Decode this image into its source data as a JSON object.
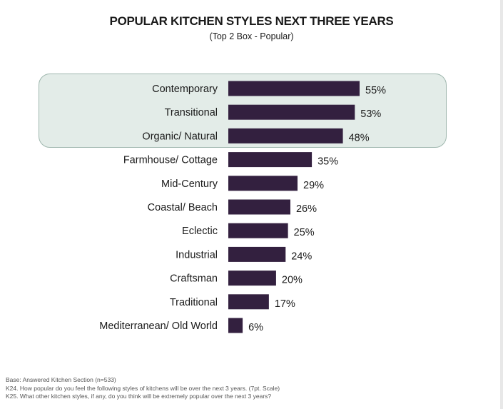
{
  "chart_data": {
    "type": "bar",
    "orientation": "horizontal",
    "title": "POPULAR KITCHEN STYLES NEXT THREE YEARS",
    "subtitle": "(Top 2 Box - Popular)",
    "categories": [
      "Contemporary",
      "Transitional",
      "Organic/ Natural",
      "Farmhouse/ Cottage",
      "Mid-Century",
      "Coastal/ Beach",
      "Eclectic",
      "Industrial",
      "Craftsman",
      "Traditional",
      "Mediterranean/ Old World"
    ],
    "values": [
      55,
      53,
      48,
      35,
      29,
      26,
      25,
      24,
      20,
      17,
      6
    ],
    "value_labels": [
      "55%",
      "53%",
      "48%",
      "35%",
      "29%",
      "26%",
      "25%",
      "24%",
      "20%",
      "17%",
      "6%"
    ],
    "unit": "%",
    "highlighted_categories": [
      "Contemporary",
      "Transitional",
      "Organic/ Natural"
    ],
    "bar_color": "#33203f",
    "highlight_color": "#e3ece8",
    "grid": false,
    "legend": "none"
  },
  "footnotes": [
    "Base:  Answered Kitchen Section (n=533)",
    "K24.   How popular do you feel the following styles of kitchens will be over the next 3 years. (7pt. Scale)",
    "K25.   What other kitchen styles, if any, do you think will be extremely popular over the next 3 years?"
  ]
}
